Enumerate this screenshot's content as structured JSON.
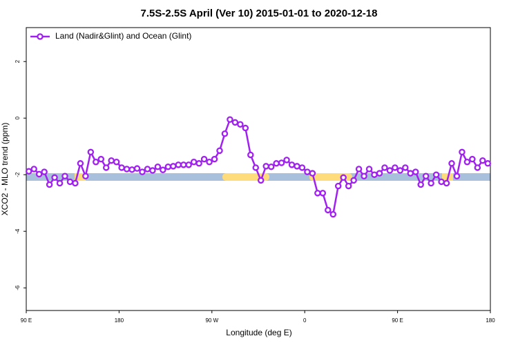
{
  "chart_data": {
    "type": "line",
    "title": "7.5S-2.5S April (Ver 10)   2015-01-01 to 2020-12-18",
    "x_label": "Longitude (deg E)",
    "y_label": "XCO2 - MLO trend (ppm)",
    "xlim": [
      90,
      540
    ],
    "ylim": [
      -6.8,
      3.2
    ],
    "xticks": [
      {
        "value": 90,
        "label": "90 E"
      },
      180,
      {
        "value": 270,
        "label": "90 W"
      },
      {
        "value": 360,
        "label": "0"
      },
      {
        "value": 450,
        "label": "90 E"
      },
      {
        "value": 540,
        "label": "180"
      }
    ],
    "yticks": [
      2,
      0,
      -2,
      -4,
      -6
    ],
    "legend": "top-left",
    "x": [
      92.5,
      97.5,
      102.5,
      107.5,
      112.5,
      117.5,
      122.5,
      127.5,
      132.5,
      137.5,
      142.5,
      147.5,
      152.5,
      157.5,
      162.5,
      167.5,
      172.5,
      177.5,
      182.5,
      187.5,
      192.5,
      197.5,
      202.5,
      207.5,
      212.5,
      217.5,
      222.5,
      227.5,
      232.5,
      237.5,
      242.5,
      247.5,
      252.5,
      257.5,
      262.5,
      267.5,
      272.5,
      277.5,
      282.5,
      287.5,
      292.5,
      297.5,
      302.5,
      307.5,
      312.5,
      317.5,
      322.5,
      327.5,
      332.5,
      337.5,
      342.5,
      347.5,
      352.5,
      357.5,
      362.5,
      367.5,
      372.5,
      377.5,
      382.5,
      387.5,
      392.5,
      397.5,
      402.5,
      407.5,
      412.5,
      417.5,
      422.5,
      427.5,
      432.5,
      437.5,
      442.5,
      447.5,
      452.5,
      457.5,
      462.5,
      467.5,
      472.5,
      477.5,
      482.5,
      487.5,
      492.5,
      497.5,
      502.5,
      507.5,
      512.5,
      517.5,
      522.5,
      527.5,
      532.5,
      537.5
    ],
    "series": [
      {
        "name": "Land (Nadir&Glint) and Ocean (Glint)",
        "color": "#a020f0",
        "values": [
          -1.88,
          -1.8,
          -1.98,
          -1.9,
          -2.35,
          -2.1,
          -2.3,
          -2.05,
          -2.25,
          -2.3,
          -1.6,
          -2.05,
          -1.2,
          -1.55,
          -1.45,
          -1.75,
          -1.5,
          -1.55,
          -1.75,
          -1.8,
          -1.82,
          -1.78,
          -1.9,
          -1.8,
          -1.85,
          -1.72,
          -1.83,
          -1.72,
          -1.7,
          -1.65,
          -1.65,
          -1.65,
          -1.55,
          -1.6,
          -1.45,
          -1.55,
          -1.45,
          -1.15,
          -0.55,
          -0.05,
          -0.15,
          -0.22,
          -0.35,
          -1.3,
          -1.75,
          -2.2,
          -1.7,
          -1.72,
          -1.6,
          -1.58,
          -1.48,
          -1.65,
          -1.7,
          -1.75,
          -1.9,
          -1.95,
          -2.65,
          -2.65,
          -3.25,
          -3.4,
          -2.4,
          -2.1,
          -2.4,
          -2.2,
          -1.8,
          -2.05,
          -1.8,
          -2.0,
          -1.95,
          -1.75,
          -1.85,
          -1.75,
          -1.85,
          -1.75,
          -1.95,
          -1.9,
          -2.35,
          -2.05,
          -2.3,
          -2.0,
          -2.25,
          -2.3,
          -1.6,
          -2.05,
          -1.2,
          -1.55,
          -1.45,
          -1.75,
          -1.5,
          -1.6
        ]
      }
    ]
  }
}
